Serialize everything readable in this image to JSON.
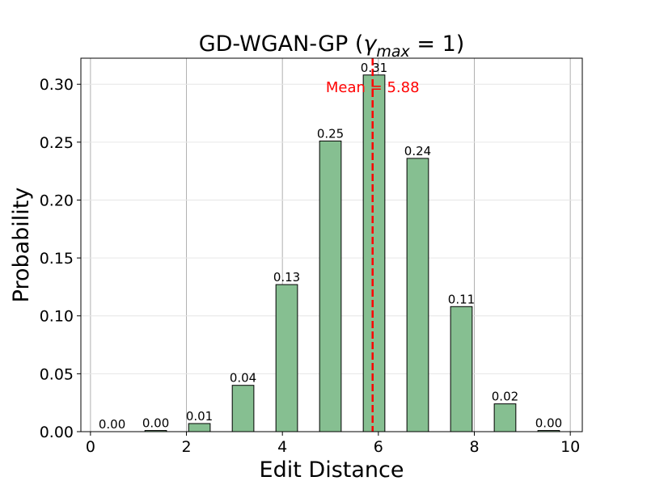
{
  "chart_data": {
    "type": "bar",
    "title_main": "GD-WGAN-GP (",
    "title_gamma": "γ",
    "title_sub": "max",
    "title_tail": " = 1)",
    "xlabel": "Edit Distance",
    "ylabel": "Probability",
    "xlim": [
      -0.2,
      10.25
    ],
    "ylim": [
      0,
      0.3225
    ],
    "x_ticks": [
      0,
      2,
      4,
      6,
      8,
      10
    ],
    "x_tick_labels": [
      "0",
      "2",
      "4",
      "6",
      "8",
      "10"
    ],
    "y_ticks": [
      0.0,
      0.05,
      0.1,
      0.15,
      0.2,
      0.25,
      0.3
    ],
    "y_tick_labels": [
      "0.00",
      "0.05",
      "0.10",
      "0.15",
      "0.20",
      "0.25",
      "0.30"
    ],
    "grid": true,
    "bars": [
      {
        "x": 0.45,
        "value": 0.0,
        "label": "0.00"
      },
      {
        "x": 1.36,
        "value": 0.001,
        "label": "0.00"
      },
      {
        "x": 2.27,
        "value": 0.007,
        "label": "0.01"
      },
      {
        "x": 3.18,
        "value": 0.04,
        "label": "0.04"
      },
      {
        "x": 4.09,
        "value": 0.127,
        "label": "0.13"
      },
      {
        "x": 5.0,
        "value": 0.251,
        "label": "0.25"
      },
      {
        "x": 5.91,
        "value": 0.308,
        "label": "0.31"
      },
      {
        "x": 6.82,
        "value": 0.236,
        "label": "0.24"
      },
      {
        "x": 7.73,
        "value": 0.108,
        "label": "0.11"
      },
      {
        "x": 8.64,
        "value": 0.024,
        "label": "0.02"
      },
      {
        "x": 9.55,
        "value": 0.001,
        "label": "0.00"
      }
    ],
    "bar_width": 0.45,
    "bar_color": "#86bf91",
    "bar_edge_color": "#000000",
    "mean": 5.88,
    "mean_label": "Mean = 5.88",
    "mean_color": "#ff0000"
  }
}
